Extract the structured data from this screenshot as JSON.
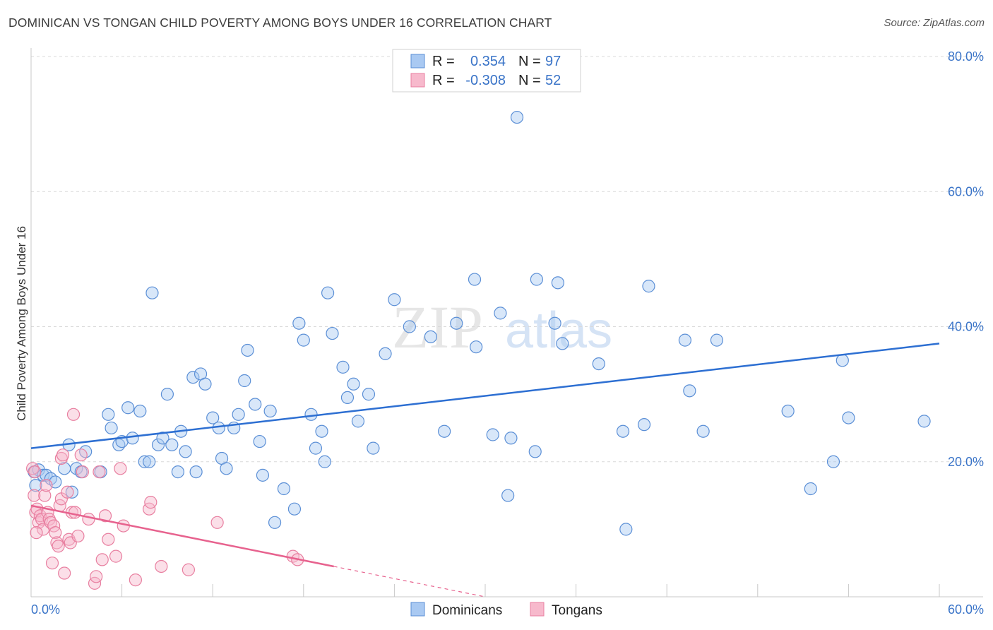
{
  "title": "DOMINICAN VS TONGAN CHILD POVERTY AMONG BOYS UNDER 16 CORRELATION CHART",
  "source": "Source: ZipAtlas.com",
  "watermark": {
    "part1": "ZIP",
    "part2": "atlas"
  },
  "colors": {
    "blue_fill": "#a9c9f2",
    "blue_stroke": "#5b8fd6",
    "blue_line": "#2d6fd2",
    "pink_fill": "#f7b9cc",
    "pink_stroke": "#e87fa0",
    "pink_line": "#e7628e",
    "tick_text": "#3a74c8",
    "grid": "#d9d9d9"
  },
  "legend": {
    "rows": [
      {
        "r_label": "R =",
        "r_value": "0.354",
        "n_label": "N =",
        "n_value": "97",
        "series": "Dominicans"
      },
      {
        "r_label": "R =",
        "r_value": "-0.308",
        "n_label": "N =",
        "n_value": "52",
        "series": "Tongans"
      }
    ]
  },
  "chart_data": {
    "type": "scatter",
    "title": "DOMINICAN VS TONGAN CHILD POVERTY AMONG BOYS UNDER 16 CORRELATION CHART",
    "xlabel": "",
    "ylabel": "Child Poverty Among Boys Under 16",
    "xlim": [
      0,
      60
    ],
    "ylim": [
      0,
      80
    ],
    "x_tick_labels": [
      "0.0%",
      "60.0%"
    ],
    "y_tick_labels": [
      "20.0%",
      "40.0%",
      "60.0%",
      "80.0%"
    ],
    "y_ticks": [
      20,
      40,
      60,
      80
    ],
    "grid": true,
    "legend_position": "bottom",
    "series": [
      {
        "name": "Dominicans",
        "trend": {
          "x": [
            0,
            60
          ],
          "y": [
            22.0,
            37.5
          ]
        },
        "points": [
          [
            0.2,
            18.5
          ],
          [
            0.5,
            18.8
          ],
          [
            0.8,
            18.0
          ],
          [
            1.0,
            18.0
          ],
          [
            1.3,
            17.5
          ],
          [
            1.6,
            17.0
          ],
          [
            2.2,
            19.0
          ],
          [
            2.5,
            22.5
          ],
          [
            2.7,
            15.5
          ],
          [
            3.0,
            19.0
          ],
          [
            3.3,
            18.5
          ],
          [
            3.6,
            21.5
          ],
          [
            4.6,
            18.5
          ],
          [
            5.1,
            27.0
          ],
          [
            5.3,
            25.0
          ],
          [
            5.8,
            22.5
          ],
          [
            6.0,
            23.0
          ],
          [
            6.4,
            28.0
          ],
          [
            6.7,
            23.5
          ],
          [
            7.2,
            27.5
          ],
          [
            7.5,
            20.0
          ],
          [
            7.8,
            20.0
          ],
          [
            8.0,
            45.0
          ],
          [
            8.4,
            22.5
          ],
          [
            8.7,
            23.5
          ],
          [
            9.0,
            30.0
          ],
          [
            9.3,
            22.5
          ],
          [
            9.7,
            18.5
          ],
          [
            9.9,
            24.5
          ],
          [
            10.2,
            21.5
          ],
          [
            10.7,
            32.5
          ],
          [
            10.9,
            18.5
          ],
          [
            11.2,
            33.0
          ],
          [
            11.5,
            31.5
          ],
          [
            12.0,
            26.5
          ],
          [
            12.4,
            25.0
          ],
          [
            12.6,
            20.5
          ],
          [
            12.9,
            19.0
          ],
          [
            13.4,
            25.0
          ],
          [
            13.7,
            27.0
          ],
          [
            14.1,
            32.0
          ],
          [
            14.3,
            36.5
          ],
          [
            14.8,
            28.5
          ],
          [
            15.1,
            23.0
          ],
          [
            15.3,
            18.0
          ],
          [
            15.8,
            27.5
          ],
          [
            16.1,
            11.0
          ],
          [
            16.7,
            16.0
          ],
          [
            17.4,
            13.0
          ],
          [
            17.7,
            40.5
          ],
          [
            18.0,
            38.0
          ],
          [
            18.5,
            27.0
          ],
          [
            18.8,
            22.0
          ],
          [
            19.2,
            24.5
          ],
          [
            19.4,
            20.0
          ],
          [
            19.6,
            45.0
          ],
          [
            19.9,
            39.0
          ],
          [
            20.6,
            34.0
          ],
          [
            20.9,
            29.5
          ],
          [
            21.3,
            31.5
          ],
          [
            21.6,
            26.0
          ],
          [
            22.3,
            30.0
          ],
          [
            22.6,
            22.0
          ],
          [
            23.4,
            36.0
          ],
          [
            24.0,
            44.0
          ],
          [
            25.0,
            40.0
          ],
          [
            26.4,
            38.5
          ],
          [
            27.3,
            24.5
          ],
          [
            28.1,
            40.5
          ],
          [
            29.3,
            47.0
          ],
          [
            29.4,
            37.0
          ],
          [
            30.5,
            24.0
          ],
          [
            31.0,
            42.0
          ],
          [
            31.5,
            15.0
          ],
          [
            31.7,
            23.5
          ],
          [
            32.1,
            71.0
          ],
          [
            33.3,
            21.5
          ],
          [
            33.4,
            47.0
          ],
          [
            34.6,
            40.5
          ],
          [
            34.8,
            46.5
          ],
          [
            35.1,
            37.5
          ],
          [
            37.5,
            34.5
          ],
          [
            39.1,
            24.5
          ],
          [
            39.3,
            10.0
          ],
          [
            40.5,
            25.5
          ],
          [
            40.8,
            46.0
          ],
          [
            43.2,
            38.0
          ],
          [
            43.5,
            30.5
          ],
          [
            44.4,
            24.5
          ],
          [
            45.3,
            38.0
          ],
          [
            50.0,
            27.5
          ],
          [
            51.5,
            16.0
          ],
          [
            53.0,
            20.0
          ],
          [
            53.6,
            35.0
          ],
          [
            54.0,
            26.5
          ],
          [
            59.0,
            26.0
          ],
          [
            0.3,
            16.5
          ]
        ]
      },
      {
        "name": "Tongans",
        "trend": {
          "x": [
            0,
            20
          ],
          "y": [
            13.5,
            4.5
          ]
        },
        "points": [
          [
            0.1,
            19.0
          ],
          [
            0.2,
            15.0
          ],
          [
            0.3,
            12.5
          ],
          [
            0.4,
            13.0
          ],
          [
            0.5,
            11.0
          ],
          [
            0.6,
            12.0
          ],
          [
            0.7,
            11.5
          ],
          [
            0.8,
            10.0
          ],
          [
            0.9,
            15.0
          ],
          [
            1.0,
            16.5
          ],
          [
            1.1,
            12.5
          ],
          [
            1.2,
            11.5
          ],
          [
            1.3,
            11.0
          ],
          [
            1.4,
            5.0
          ],
          [
            1.5,
            10.5
          ],
          [
            1.6,
            9.5
          ],
          [
            1.7,
            8.0
          ],
          [
            1.8,
            7.5
          ],
          [
            1.9,
            13.5
          ],
          [
            2.0,
            14.5
          ],
          [
            2.0,
            20.5
          ],
          [
            2.1,
            21.0
          ],
          [
            2.2,
            3.5
          ],
          [
            2.4,
            15.5
          ],
          [
            2.5,
            8.5
          ],
          [
            2.6,
            8.0
          ],
          [
            2.7,
            12.5
          ],
          [
            2.8,
            27.0
          ],
          [
            2.9,
            12.5
          ],
          [
            3.1,
            9.0
          ],
          [
            3.3,
            21.0
          ],
          [
            3.4,
            18.5
          ],
          [
            3.8,
            11.5
          ],
          [
            4.2,
            2.0
          ],
          [
            4.3,
            3.0
          ],
          [
            4.5,
            18.5
          ],
          [
            4.7,
            5.5
          ],
          [
            4.9,
            12.0
          ],
          [
            5.1,
            8.5
          ],
          [
            5.6,
            6.0
          ],
          [
            5.9,
            19.0
          ],
          [
            6.1,
            10.5
          ],
          [
            6.9,
            2.5
          ],
          [
            7.8,
            13.0
          ],
          [
            7.9,
            14.0
          ],
          [
            8.6,
            4.5
          ],
          [
            10.4,
            4.0
          ],
          [
            12.3,
            11.0
          ],
          [
            17.3,
            6.0
          ],
          [
            17.6,
            5.5
          ],
          [
            0.25,
            18.5
          ],
          [
            0.35,
            9.5
          ]
        ]
      }
    ]
  },
  "bottom_legend": [
    {
      "label": "Dominicans",
      "swatch": "blue"
    },
    {
      "label": "Tongans",
      "swatch": "pink"
    }
  ]
}
